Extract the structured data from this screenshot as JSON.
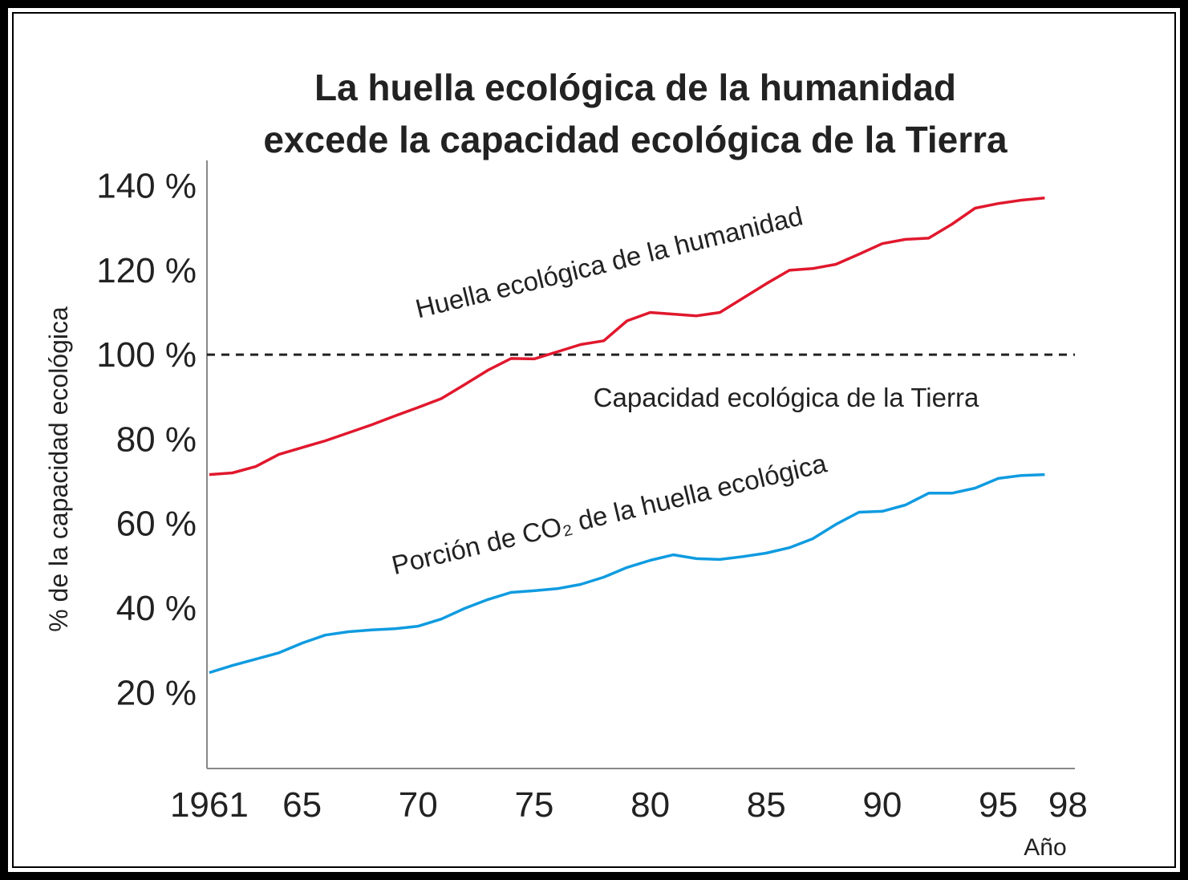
{
  "chart_data": {
    "type": "line",
    "title": [
      "La huella ecológica de la humanidad",
      "excede la capacidad ecológica de la Tierra"
    ],
    "y_label": "% de la capacidad ecológica",
    "x_label": "Año",
    "x": [
      1961,
      1962,
      1963,
      1964,
      1965,
      1966,
      1967,
      1968,
      1969,
      1970,
      1971,
      1972,
      1973,
      1974,
      1975,
      1976,
      1977,
      1978,
      1979,
      1980,
      1981,
      1982,
      1983,
      1984,
      1985,
      1986,
      1987,
      1988,
      1989,
      1990,
      1991,
      1992,
      1993,
      1994,
      1995,
      1996,
      1997
    ],
    "series": [
      {
        "name": "Huella ecológica de la humanidad",
        "color": "#e0182d",
        "values": [
          71.6,
          72,
          73.5,
          76.4,
          78,
          79.6,
          81.5,
          83.4,
          85.5,
          87.5,
          89.6,
          92.9,
          96.3,
          99.1,
          99,
          100.7,
          102.4,
          103.3,
          108,
          110,
          109.6,
          109.2,
          110,
          113.4,
          116.8,
          120,
          120.4,
          121.4,
          123.8,
          126.3,
          127.3,
          127.6,
          130.9,
          134.7,
          135.8,
          136.6,
          137.1
        ]
      },
      {
        "name": "Porción de CO₂ de la huella ecológica",
        "color": "#0f9be0",
        "values": [
          24.7,
          26.4,
          27.9,
          29.4,
          31.7,
          33.6,
          34.4,
          34.8,
          35.1,
          35.7,
          37.4,
          39.9,
          42,
          43.7,
          44.1,
          44.6,
          45.6,
          47.3,
          49.6,
          51.3,
          52.6,
          51.7,
          51.5,
          52.2,
          53,
          54.3,
          56.4,
          59.8,
          62.7,
          62.9,
          64.4,
          67.2,
          67.2,
          68.4,
          70.7,
          71.4,
          71.6
        ]
      }
    ],
    "reference_line": {
      "value": 100,
      "label": "Capacidad ecológica de la Tierra"
    },
    "xlim": [
      1960.9,
      1998.3
    ],
    "xticks": [
      1961,
      {
        "value": 1965,
        "label": "65"
      },
      {
        "value": 1970,
        "label": "70"
      },
      {
        "value": 1975,
        "label": "75"
      },
      {
        "value": 1980,
        "label": "80"
      },
      {
        "value": 1985,
        "label": "85"
      },
      {
        "value": 1990,
        "label": "90"
      },
      {
        "value": 1995,
        "label": "95"
      },
      {
        "value": 1998,
        "label": "98"
      }
    ],
    "ylim": [
      2,
      146
    ],
    "yticks": [
      {
        "value": 20,
        "label": "20 %"
      },
      {
        "value": 40,
        "label": "40 %"
      },
      {
        "value": 60,
        "label": "60 %"
      },
      {
        "value": 80,
        "label": "80 %"
      },
      {
        "value": 100,
        "label": "100 %"
      },
      {
        "value": 120,
        "label": "120 %"
      },
      {
        "value": 140,
        "label": "140 %"
      }
    ]
  }
}
